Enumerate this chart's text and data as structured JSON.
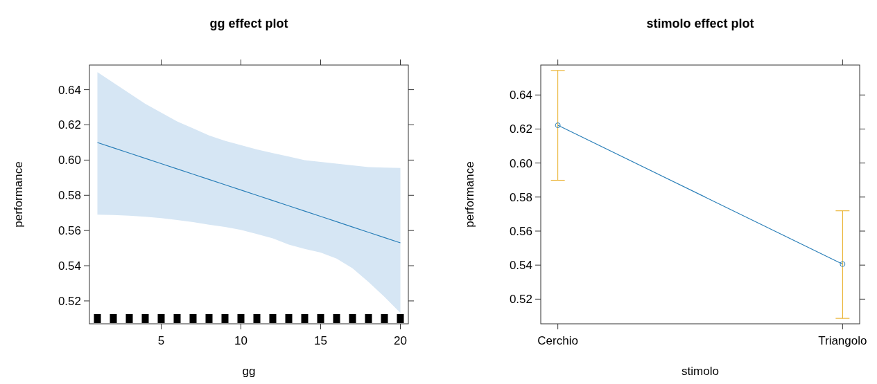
{
  "chart_data": [
    {
      "type": "line",
      "title": "gg effect plot",
      "xlabel": "gg",
      "ylabel": "performance",
      "x": [
        1,
        2,
        3,
        4,
        5,
        6,
        7,
        8,
        9,
        10,
        11,
        12,
        13,
        14,
        15,
        16,
        17,
        18,
        19,
        20
      ],
      "series": [
        {
          "color": "#2a7fb8",
          "values": [
            0.61,
            0.607,
            0.604,
            0.601,
            0.598,
            0.595,
            0.592,
            0.589,
            0.586,
            0.583,
            0.58,
            0.577,
            0.574,
            0.571,
            0.568,
            0.565,
            0.562,
            0.559,
            0.556,
            0.553
          ],
          "lower": [
            0.569,
            0.5688,
            0.5684,
            0.5678,
            0.567,
            0.566,
            0.5648,
            0.5633,
            0.562,
            0.5604,
            0.558,
            0.5555,
            0.552,
            0.5495,
            0.5475,
            0.544,
            0.5385,
            0.5308,
            0.5223,
            0.5132
          ],
          "upper": [
            0.65,
            0.644,
            0.638,
            0.632,
            0.627,
            0.622,
            0.618,
            0.614,
            0.611,
            0.6085,
            0.606,
            0.604,
            0.602,
            0.6,
            0.599,
            0.598,
            0.597,
            0.596,
            0.5957,
            0.5955
          ]
        }
      ],
      "xlim": [
        0.5,
        20.5
      ],
      "xticks": [
        5,
        10,
        15,
        20
      ],
      "ylim": [
        0.507,
        0.654
      ],
      "yticks": [
        0.52,
        0.54,
        0.56,
        0.58,
        {
          "value": 0.6,
          "label": "0.60"
        },
        0.62,
        0.64
      ],
      "marker": "none"
    },
    {
      "type": "line",
      "title": "stimolo effect plot",
      "xlabel": "stimolo",
      "ylabel": "performance",
      "categories": [
        "Cerchio",
        "Triangolo"
      ],
      "series": [
        {
          "color": "#2a7fb8",
          "values": [
            0.6222,
            0.5406
          ],
          "errors": [
            [
              0.5899,
              0.6544
            ],
            [
              0.5087,
              0.5719
            ]
          ]
        }
      ],
      "ylim": [
        0.5055,
        0.6576
      ],
      "yticks": [
        0.52,
        0.54,
        0.56,
        0.58,
        {
          "value": 0.6,
          "label": "0.60"
        },
        0.62,
        0.64
      ],
      "marker": "circle"
    }
  ]
}
